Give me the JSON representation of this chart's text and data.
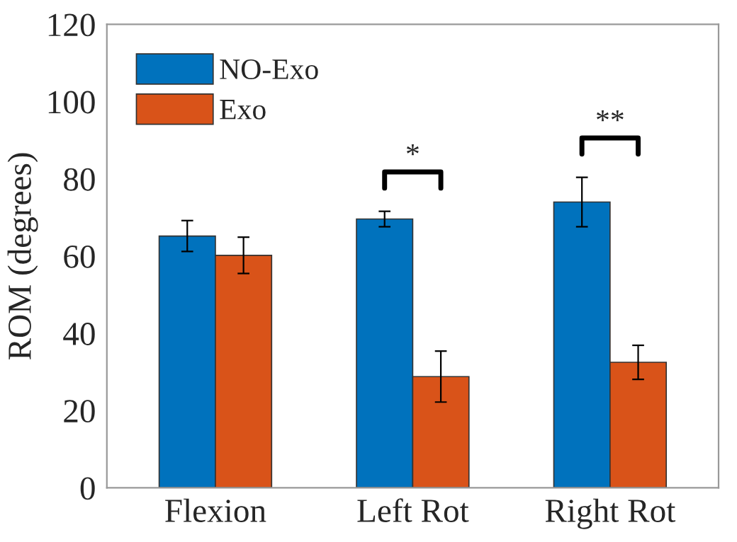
{
  "chart_data": {
    "type": "bar",
    "ylabel": "ROM (degrees)",
    "categories": [
      "Flexion",
      "Left Rot",
      "Right Rot"
    ],
    "series": [
      {
        "name": "NO-Exo",
        "color": "#0072bd",
        "values": [
          65.2,
          69.6,
          74.0
        ],
        "errors": [
          4.0,
          2.0,
          6.4
        ]
      },
      {
        "name": "Exo",
        "color": "#d95319",
        "values": [
          60.2,
          28.8,
          32.5
        ],
        "errors": [
          4.7,
          6.6,
          4.4
        ]
      }
    ],
    "ylim": [
      0,
      120
    ],
    "yticks": [
      0,
      20,
      40,
      60,
      80,
      100,
      120
    ],
    "grid": false,
    "legend": "top left",
    "annotations": [
      "*",
      "**"
    ]
  }
}
